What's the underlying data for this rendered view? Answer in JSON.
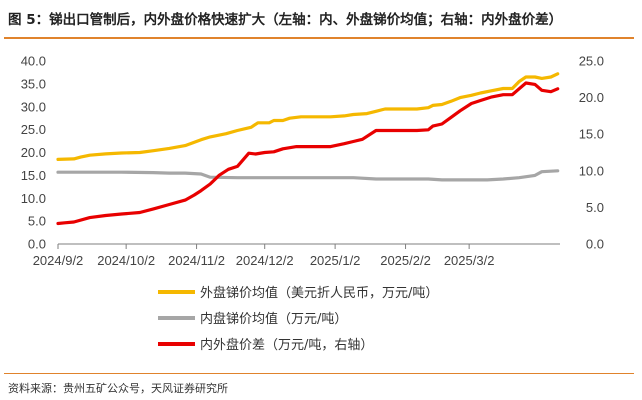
{
  "header": {
    "title": "图 5：锑出口管制后，内外盘价格快速扩大（左轴：内、外盘锑价均值；右轴：内外盘价差）"
  },
  "footer": {
    "source": "资料来源：贵州五矿公众号，天风证券研究所"
  },
  "chart_data": {
    "type": "line",
    "title": "",
    "xlabel": "",
    "ylabel": "",
    "x_ticks": [
      "2024/9/2",
      "2024/10/2",
      "2024/11/2",
      "2024/12/2",
      "2025/1/2",
      "2025/2/2",
      "2025/3/2"
    ],
    "y_left": {
      "range": [
        0,
        40
      ],
      "ticks": [
        "0.0",
        "5.0",
        "10.0",
        "15.0",
        "20.0",
        "25.0",
        "30.0",
        "35.0",
        "40.0"
      ]
    },
    "y_right": {
      "range": [
        0,
        25
      ],
      "ticks": [
        "0.0",
        "5.0",
        "10.0",
        "15.0",
        "20.0",
        "25.0"
      ]
    },
    "grid": false,
    "legend_position": "bottom",
    "series": [
      {
        "name": "外盘锑价均值（美元折人民币，万元/吨）",
        "axis": "left",
        "color": "#f5b800",
        "points": [
          [
            "2024-09-02",
            18.5
          ],
          [
            "2024-09-09",
            18.6
          ],
          [
            "2024-09-12",
            19.0
          ],
          [
            "2024-09-16",
            19.4
          ],
          [
            "2024-09-23",
            19.7
          ],
          [
            "2024-09-30",
            19.9
          ],
          [
            "2024-10-08",
            20.0
          ],
          [
            "2024-10-14",
            20.4
          ],
          [
            "2024-10-21",
            20.9
          ],
          [
            "2024-10-28",
            21.5
          ],
          [
            "2024-11-04",
            22.8
          ],
          [
            "2024-11-08",
            23.4
          ],
          [
            "2024-11-15",
            24.1
          ],
          [
            "2024-11-20",
            24.8
          ],
          [
            "2024-11-26",
            25.5
          ],
          [
            "2024-11-29",
            26.5
          ],
          [
            "2024-12-04",
            26.5
          ],
          [
            "2024-12-06",
            27.0
          ],
          [
            "2024-12-10",
            27.0
          ],
          [
            "2024-12-13",
            27.5
          ],
          [
            "2024-12-18",
            27.8
          ],
          [
            "2024-12-24",
            27.8
          ],
          [
            "2024-12-31",
            27.8
          ],
          [
            "2025-01-06",
            28.0
          ],
          [
            "2025-01-10",
            28.3
          ],
          [
            "2025-01-16",
            28.5
          ],
          [
            "2025-01-20",
            29.0
          ],
          [
            "2025-01-24",
            29.5
          ],
          [
            "2025-01-31",
            29.5
          ],
          [
            "2025-02-07",
            29.5
          ],
          [
            "2025-02-12",
            29.8
          ],
          [
            "2025-02-14",
            30.3
          ],
          [
            "2025-02-18",
            30.5
          ],
          [
            "2025-02-22",
            31.2
          ],
          [
            "2025-02-26",
            32.0
          ],
          [
            "2025-03-03",
            32.5
          ],
          [
            "2025-03-07",
            33.0
          ],
          [
            "2025-03-12",
            33.5
          ],
          [
            "2025-03-17",
            34.0
          ],
          [
            "2025-03-21",
            34.0
          ],
          [
            "2025-03-24",
            35.5
          ],
          [
            "2025-03-27",
            36.5
          ],
          [
            "2025-03-31",
            36.5
          ],
          [
            "2025-04-03",
            36.2
          ],
          [
            "2025-04-07",
            36.5
          ],
          [
            "2025-04-10",
            37.2
          ]
        ]
      },
      {
        "name": "内盘锑价均值（万元/吨）",
        "axis": "left",
        "color": "#a6a6a6",
        "points": [
          [
            "2024-09-02",
            15.7
          ],
          [
            "2024-09-16",
            15.7
          ],
          [
            "2024-09-30",
            15.7
          ],
          [
            "2024-10-14",
            15.6
          ],
          [
            "2024-10-21",
            15.5
          ],
          [
            "2024-10-28",
            15.5
          ],
          [
            "2024-11-04",
            15.3
          ],
          [
            "2024-11-08",
            14.6
          ],
          [
            "2024-11-20",
            14.5
          ],
          [
            "2024-12-04",
            14.5
          ],
          [
            "2024-12-18",
            14.5
          ],
          [
            "2024-12-31",
            14.5
          ],
          [
            "2025-01-10",
            14.5
          ],
          [
            "2025-01-20",
            14.2
          ],
          [
            "2025-01-31",
            14.2
          ],
          [
            "2025-02-12",
            14.2
          ],
          [
            "2025-02-18",
            14.0
          ],
          [
            "2025-02-28",
            14.0
          ],
          [
            "2025-03-10",
            14.0
          ],
          [
            "2025-03-17",
            14.2
          ],
          [
            "2025-03-24",
            14.5
          ],
          [
            "2025-03-31",
            15.0
          ],
          [
            "2025-04-03",
            15.8
          ],
          [
            "2025-04-10",
            16.0
          ]
        ]
      },
      {
        "name": "内外盘价差（万元/吨，右轴）",
        "axis": "right",
        "color": "#e80000",
        "points": [
          [
            "2024-09-02",
            2.8
          ],
          [
            "2024-09-05",
            2.9
          ],
          [
            "2024-09-09",
            3.0
          ],
          [
            "2024-09-16",
            3.6
          ],
          [
            "2024-09-23",
            3.9
          ],
          [
            "2024-09-30",
            4.1
          ],
          [
            "2024-10-08",
            4.3
          ],
          [
            "2024-10-14",
            4.8
          ],
          [
            "2024-10-21",
            5.4
          ],
          [
            "2024-10-28",
            6.0
          ],
          [
            "2024-11-01",
            6.7
          ],
          [
            "2024-11-04",
            7.3
          ],
          [
            "2024-11-08",
            8.2
          ],
          [
            "2024-11-12",
            9.4
          ],
          [
            "2024-11-16",
            10.2
          ],
          [
            "2024-11-20",
            10.6
          ],
          [
            "2024-11-25",
            12.4
          ],
          [
            "2024-11-28",
            12.3
          ],
          [
            "2024-12-02",
            12.5
          ],
          [
            "2024-12-06",
            12.6
          ],
          [
            "2024-12-10",
            13.0
          ],
          [
            "2024-12-16",
            13.3
          ],
          [
            "2024-12-24",
            13.3
          ],
          [
            "2024-12-31",
            13.3
          ],
          [
            "2025-01-06",
            13.7
          ],
          [
            "2025-01-10",
            14.0
          ],
          [
            "2025-01-14",
            14.3
          ],
          [
            "2025-01-20",
            15.5
          ],
          [
            "2025-01-31",
            15.5
          ],
          [
            "2025-02-07",
            15.5
          ],
          [
            "2025-02-12",
            15.6
          ],
          [
            "2025-02-14",
            16.1
          ],
          [
            "2025-02-18",
            16.4
          ],
          [
            "2025-02-22",
            17.3
          ],
          [
            "2025-02-26",
            18.2
          ],
          [
            "2025-03-03",
            19.2
          ],
          [
            "2025-03-07",
            19.6
          ],
          [
            "2025-03-12",
            20.1
          ],
          [
            "2025-03-17",
            20.4
          ],
          [
            "2025-03-21",
            20.4
          ],
          [
            "2025-03-24",
            21.2
          ],
          [
            "2025-03-27",
            22.0
          ],
          [
            "2025-03-31",
            21.8
          ],
          [
            "2025-04-03",
            21.0
          ],
          [
            "2025-04-07",
            20.8
          ],
          [
            "2025-04-10",
            21.2
          ]
        ]
      }
    ]
  }
}
